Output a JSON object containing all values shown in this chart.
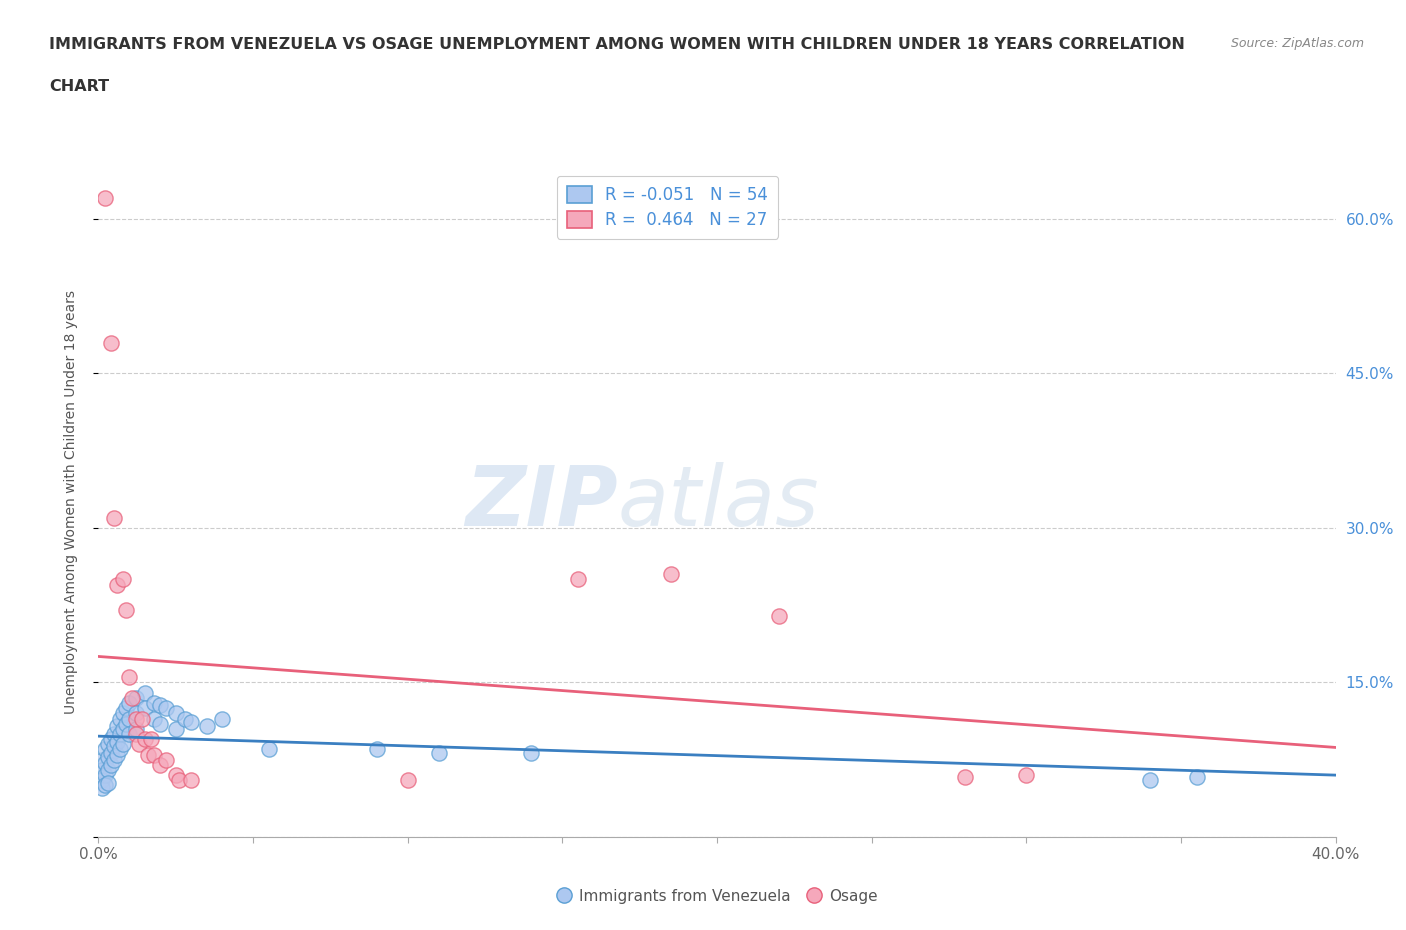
{
  "title_line1": "IMMIGRANTS FROM VENEZUELA VS OSAGE UNEMPLOYMENT AMONG WOMEN WITH CHILDREN UNDER 18 YEARS CORRELATION",
  "title_line2": "CHART",
  "source": "Source: ZipAtlas.com",
  "ylabel": "Unemployment Among Women with Children Under 18 years",
  "xlim": [
    0.0,
    0.4
  ],
  "ylim": [
    0.0,
    0.65
  ],
  "xticks": [
    0.0,
    0.05,
    0.1,
    0.15,
    0.2,
    0.25,
    0.3,
    0.35,
    0.4
  ],
  "xticklabels": [
    "0.0%",
    "",
    "",
    "",
    "",
    "",
    "",
    "",
    "40.0%"
  ],
  "ytick_positions": [
    0.0,
    0.15,
    0.3,
    0.45,
    0.6
  ],
  "yticklabels_right": [
    "",
    "15.0%",
    "30.0%",
    "45.0%",
    "60.0%"
  ],
  "grid_color": "#cccccc",
  "watermark_zip": "ZIP",
  "watermark_atlas": "atlas",
  "legend_labels": [
    "Immigrants from Venezuela",
    "Osage"
  ],
  "blue_R": -0.051,
  "blue_N": 54,
  "pink_R": 0.464,
  "pink_N": 27,
  "blue_color": "#adc8f0",
  "pink_color": "#f5a8bb",
  "blue_edge_color": "#5a9fd4",
  "pink_edge_color": "#e8607a",
  "blue_line_color": "#3a7fc1",
  "pink_line_color": "#e8607a",
  "blue_scatter": [
    [
      0.001,
      0.075
    ],
    [
      0.001,
      0.065
    ],
    [
      0.001,
      0.055
    ],
    [
      0.001,
      0.048
    ],
    [
      0.002,
      0.085
    ],
    [
      0.002,
      0.072
    ],
    [
      0.002,
      0.06
    ],
    [
      0.002,
      0.05
    ],
    [
      0.003,
      0.09
    ],
    [
      0.003,
      0.078
    ],
    [
      0.003,
      0.065
    ],
    [
      0.003,
      0.052
    ],
    [
      0.004,
      0.095
    ],
    [
      0.004,
      0.082
    ],
    [
      0.004,
      0.07
    ],
    [
      0.005,
      0.1
    ],
    [
      0.005,
      0.088
    ],
    [
      0.005,
      0.075
    ],
    [
      0.006,
      0.108
    ],
    [
      0.006,
      0.092
    ],
    [
      0.006,
      0.08
    ],
    [
      0.007,
      0.115
    ],
    [
      0.007,
      0.1
    ],
    [
      0.007,
      0.085
    ],
    [
      0.008,
      0.12
    ],
    [
      0.008,
      0.105
    ],
    [
      0.008,
      0.09
    ],
    [
      0.009,
      0.125
    ],
    [
      0.009,
      0.11
    ],
    [
      0.01,
      0.13
    ],
    [
      0.01,
      0.115
    ],
    [
      0.01,
      0.1
    ],
    [
      0.012,
      0.135
    ],
    [
      0.012,
      0.12
    ],
    [
      0.012,
      0.105
    ],
    [
      0.015,
      0.14
    ],
    [
      0.015,
      0.125
    ],
    [
      0.018,
      0.13
    ],
    [
      0.018,
      0.115
    ],
    [
      0.02,
      0.128
    ],
    [
      0.02,
      0.11
    ],
    [
      0.022,
      0.125
    ],
    [
      0.025,
      0.12
    ],
    [
      0.025,
      0.105
    ],
    [
      0.028,
      0.115
    ],
    [
      0.03,
      0.112
    ],
    [
      0.035,
      0.108
    ],
    [
      0.04,
      0.115
    ],
    [
      0.055,
      0.085
    ],
    [
      0.09,
      0.085
    ],
    [
      0.11,
      0.082
    ],
    [
      0.14,
      0.082
    ],
    [
      0.34,
      0.055
    ],
    [
      0.355,
      0.058
    ]
  ],
  "pink_scatter": [
    [
      0.002,
      0.62
    ],
    [
      0.004,
      0.48
    ],
    [
      0.005,
      0.31
    ],
    [
      0.006,
      0.245
    ],
    [
      0.008,
      0.25
    ],
    [
      0.009,
      0.22
    ],
    [
      0.01,
      0.155
    ],
    [
      0.011,
      0.135
    ],
    [
      0.012,
      0.115
    ],
    [
      0.012,
      0.1
    ],
    [
      0.013,
      0.09
    ],
    [
      0.014,
      0.115
    ],
    [
      0.015,
      0.095
    ],
    [
      0.016,
      0.08
    ],
    [
      0.017,
      0.095
    ],
    [
      0.018,
      0.08
    ],
    [
      0.02,
      0.07
    ],
    [
      0.022,
      0.075
    ],
    [
      0.025,
      0.06
    ],
    [
      0.026,
      0.055
    ],
    [
      0.03,
      0.055
    ],
    [
      0.1,
      0.055
    ],
    [
      0.155,
      0.25
    ],
    [
      0.185,
      0.255
    ],
    [
      0.22,
      0.215
    ],
    [
      0.28,
      0.058
    ],
    [
      0.3,
      0.06
    ]
  ]
}
